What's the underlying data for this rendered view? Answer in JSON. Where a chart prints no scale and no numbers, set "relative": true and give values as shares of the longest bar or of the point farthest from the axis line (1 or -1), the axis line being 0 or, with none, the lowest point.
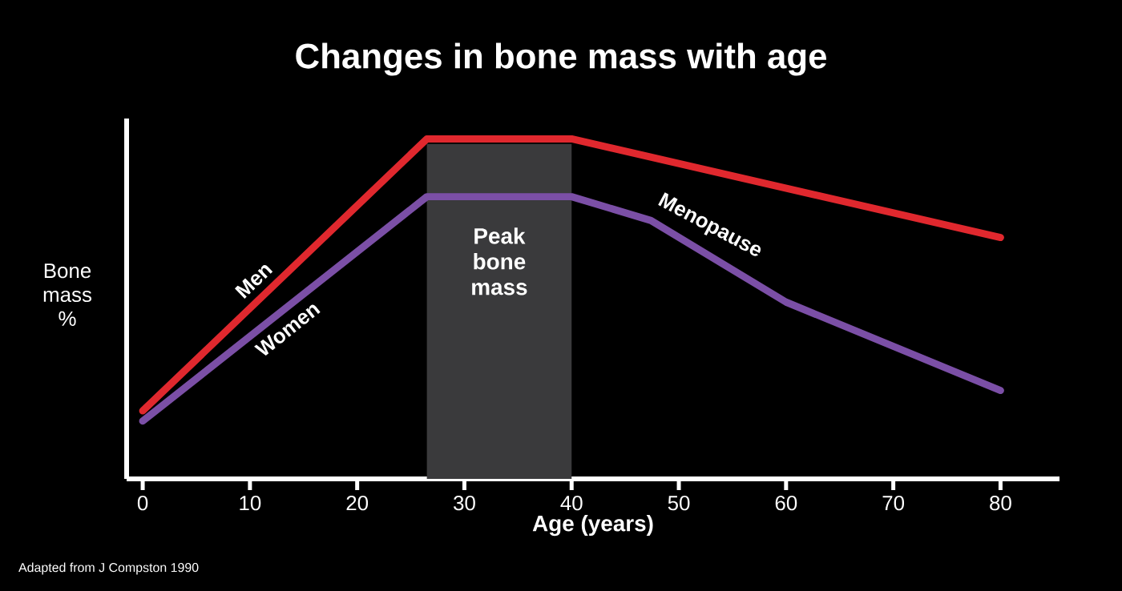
{
  "chart_data": {
    "type": "line",
    "title": "Changes in bone mass with age",
    "xlabel": "Age (years)",
    "ylabel": "Bone mass %",
    "relative": true,
    "xlim": [
      -1.5,
      85.5
    ],
    "xticks": [
      0,
      10,
      20,
      30,
      40,
      50,
      60,
      70,
      80
    ],
    "series": [
      {
        "name": "Men",
        "color": "#e0282e",
        "x": [
          0,
          26.5,
          40,
          80
        ],
        "values": [
          0.2,
          1,
          1,
          0.71
        ]
      },
      {
        "name": "Women",
        "color": "#7b4fa6",
        "x": [
          0,
          26.5,
          40,
          47.4,
          60,
          80
        ],
        "values": [
          0.17,
          0.83,
          0.83,
          0.76,
          0.52,
          0.26
        ]
      }
    ],
    "bands": [
      {
        "axis": "x",
        "from": 26.5,
        "to": 40,
        "label": "Peak bone mass",
        "color": "#3a3a3c"
      }
    ],
    "annotations": [
      "Menopause",
      "Adapted from J Compston 1990"
    ],
    "grid": false,
    "marker": "none",
    "line_style": "solid"
  }
}
